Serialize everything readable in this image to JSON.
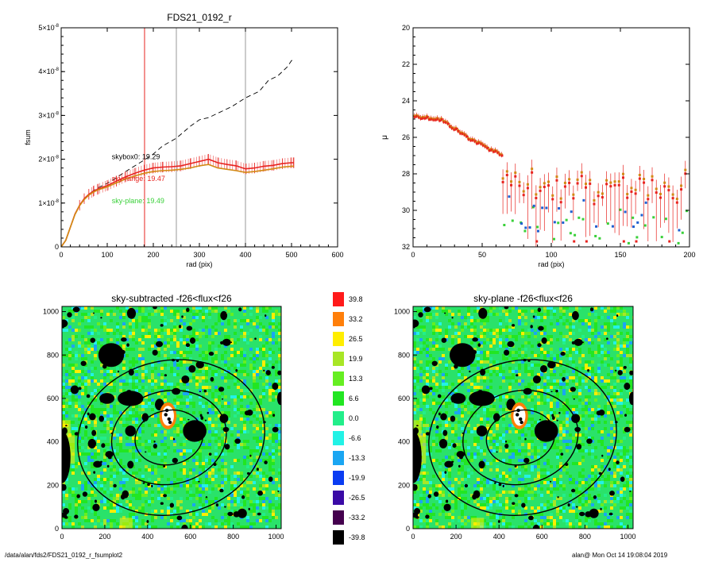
{
  "footer": {
    "path": "/data/alan/fds2/FDS21_0192_r_fsumplot2",
    "stamp": "alan@  Mon Oct 14 19:08:04 2019"
  },
  "colors": {
    "red": "#e8231f",
    "orange": "#d28a14",
    "green": "#39d039",
    "blue": "#1f5fd0",
    "gray": "#999999",
    "black": "#000000"
  },
  "chart_data": [
    {
      "type": "line",
      "title": "FDS21_0192_r",
      "xlabel": "rad (pix)",
      "ylabel": "fsum",
      "xlim": [
        0,
        600
      ],
      "ylim": [
        0,
        5e-08
      ],
      "xticks": [
        0,
        100,
        200,
        300,
        400,
        500,
        600
      ],
      "yticks": [
        {
          "value": 0,
          "mant": "0",
          "exp": ""
        },
        {
          "value": 1e-08,
          "mant": "1×10",
          "exp": "-8"
        },
        {
          "value": 2e-08,
          "mant": "2×10",
          "exp": "-8"
        },
        {
          "value": 3e-08,
          "mant": "3×10",
          "exp": "-8"
        },
        {
          "value": 4e-08,
          "mant": "4×10",
          "exp": "-8"
        },
        {
          "value": 5e-08,
          "mant": "5×10",
          "exp": "-8"
        }
      ],
      "vlines": [
        {
          "x": 181,
          "color": "red"
        },
        {
          "x": 250,
          "color": "gray"
        },
        {
          "x": 400,
          "color": "gray"
        }
      ],
      "annotations": [
        {
          "text": "skybox0: 19.29",
          "x": 110,
          "y": 2e-08,
          "color": "black"
        },
        {
          "text": "sky-range: 19.47",
          "x": 110,
          "y": 1.5e-08,
          "color": "red"
        },
        {
          "text": "sky-plane: 19.49",
          "x": 110,
          "y": 1e-08,
          "color": "green"
        }
      ],
      "series": [
        {
          "style": "dashed",
          "color": "black",
          "x": [
            0,
            10,
            20,
            30,
            40,
            50,
            60,
            70,
            80,
            100,
            120,
            140,
            160,
            180,
            200,
            220,
            250,
            280,
            300,
            320,
            340,
            370,
            400,
            430,
            450,
            470,
            480,
            490,
            500,
            505
          ],
          "y": [
            0,
            1.5e-09,
            4.5e-09,
            7.5e-09,
            9.5e-09,
            1.1e-08,
            1.2e-08,
            1.28e-08,
            1.35e-08,
            1.45e-08,
            1.58e-08,
            1.72e-08,
            1.85e-08,
            1.98e-08,
            2.12e-08,
            2.3e-08,
            2.48e-08,
            2.75e-08,
            2.9e-08,
            2.95e-08,
            3.05e-08,
            3.2e-08,
            3.4e-08,
            3.55e-08,
            3.8e-08,
            3.9e-08,
            4e-08,
            4.1e-08,
            4.25e-08,
            4.28e-08
          ]
        },
        {
          "style": "solid",
          "color": "red",
          "errorbars": true,
          "err": 1.2e-09,
          "x": [
            0,
            10,
            20,
            30,
            40,
            50,
            60,
            70,
            80,
            100,
            120,
            140,
            160,
            180,
            200,
            220,
            240,
            260,
            280,
            300,
            320,
            340,
            360,
            380,
            400,
            420,
            440,
            460,
            480,
            500,
            505
          ],
          "y": [
            0,
            1.5e-09,
            4.5e-09,
            7.5e-09,
            9.5e-09,
            1.1e-08,
            1.2e-08,
            1.27e-08,
            1.32e-08,
            1.4e-08,
            1.5e-08,
            1.6e-08,
            1.68e-08,
            1.75e-08,
            1.8e-08,
            1.82e-08,
            1.83e-08,
            1.85e-08,
            1.9e-08,
            1.95e-08,
            2e-08,
            1.92e-08,
            1.88e-08,
            1.85e-08,
            1.78e-08,
            1.8e-08,
            1.84e-08,
            1.86e-08,
            1.9e-08,
            1.92e-08,
            1.92e-08
          ]
        },
        {
          "style": "solid",
          "color": "orange",
          "x": [
            0,
            10,
            20,
            30,
            40,
            50,
            60,
            70,
            80,
            100,
            120,
            140,
            160,
            180,
            200,
            220,
            240,
            260,
            280,
            300,
            320,
            340,
            360,
            380,
            400,
            420,
            440,
            460,
            480,
            500,
            505
          ],
          "y": [
            0,
            1.5e-09,
            4.5e-09,
            7.4e-09,
            9.4e-09,
            1.08e-08,
            1.18e-08,
            1.25e-08,
            1.3e-08,
            1.37e-08,
            1.46e-08,
            1.55e-08,
            1.62e-08,
            1.68e-08,
            1.72e-08,
            1.74e-08,
            1.75e-08,
            1.77e-08,
            1.8e-08,
            1.85e-08,
            1.88e-08,
            1.8e-08,
            1.77e-08,
            1.74e-08,
            1.7e-08,
            1.72e-08,
            1.75e-08,
            1.78e-08,
            1.82e-08,
            1.84e-08,
            1.84e-08
          ]
        }
      ]
    },
    {
      "type": "scatter",
      "xlabel": "rad (pix)",
      "ylabel": "μ",
      "xlim": [
        0,
        200
      ],
      "ylim": [
        32,
        20
      ],
      "xticks": [
        0,
        50,
        100,
        150,
        200
      ],
      "yticks": [
        20,
        22,
        24,
        26,
        28,
        30,
        32
      ],
      "profile": {
        "inner": {
          "x0": 1,
          "x1": 64,
          "step": 1.5,
          "points": [
            [
              0,
              24.8
            ],
            [
              20,
              25.0
            ],
            [
              40,
              26.0
            ],
            [
              55,
              26.6
            ],
            [
              64,
              26.9
            ]
          ]
        },
        "outer": {
          "x0": 65,
          "x1": 198,
          "step": 3,
          "center": 28.6,
          "spread": 0.9
        }
      },
      "series": [
        {
          "name": "orange",
          "color": "orange",
          "marker": "square"
        },
        {
          "name": "red",
          "color": "red",
          "marker": "square",
          "errorbars": true
        },
        {
          "name": "green",
          "color": "green",
          "marker": "square",
          "outer_only": true
        },
        {
          "name": "blue",
          "color": "blue",
          "marker": "square",
          "outer_only": true
        }
      ]
    },
    {
      "type": "heatmap",
      "title": "sky-subtracted -f26<flux<f26",
      "xlim": [
        0,
        1024
      ],
      "ylim": [
        0,
        1024
      ],
      "xticks": [
        0,
        200,
        400,
        600,
        800,
        1000
      ],
      "yticks": [
        0,
        200,
        400,
        600,
        800,
        1000
      ],
      "ellipses": [
        {
          "cx": 500,
          "cy": 420,
          "rx": 160,
          "ry": 125
        },
        {
          "cx": 500,
          "cy": 420,
          "rx": 270,
          "ry": 215
        },
        {
          "cx": 510,
          "cy": 420,
          "rx": 440,
          "ry": 355
        }
      ]
    },
    {
      "type": "heatmap",
      "title": "sky-plane -f26<flux<f26",
      "xlim": [
        0,
        1024
      ],
      "ylim": [
        0,
        1024
      ],
      "xticks": [
        0,
        200,
        400,
        600,
        800,
        1000
      ],
      "yticks": [
        0,
        200,
        400,
        600,
        800,
        1000
      ],
      "ellipses": [
        {
          "cx": 500,
          "cy": 420,
          "rx": 160,
          "ry": 125
        },
        {
          "cx": 500,
          "cy": 420,
          "rx": 270,
          "ry": 215
        },
        {
          "cx": 510,
          "cy": 420,
          "rx": 440,
          "ry": 355
        }
      ]
    },
    {
      "type": "colorbar",
      "levels": [
        {
          "label": "39.8",
          "color": "#ff1a1a"
        },
        {
          "label": "33.2",
          "color": "#ff7f0a"
        },
        {
          "label": "26.5",
          "color": "#ffee00"
        },
        {
          "label": "19.9",
          "color": "#a8e626"
        },
        {
          "label": "13.3",
          "color": "#66ee22"
        },
        {
          "label": "6.6",
          "color": "#22e622"
        },
        {
          "label": "0.0",
          "color": "#22ee8a"
        },
        {
          "label": "-6.6",
          "color": "#22f2e6"
        },
        {
          "label": "-13.3",
          "color": "#1aa6f2"
        },
        {
          "label": "-19.9",
          "color": "#0a3cf2"
        },
        {
          "label": "-26.5",
          "color": "#3a0aa6"
        },
        {
          "label": "-33.2",
          "color": "#44004e"
        },
        {
          "label": "-39.8",
          "color": "#000000"
        }
      ]
    }
  ]
}
